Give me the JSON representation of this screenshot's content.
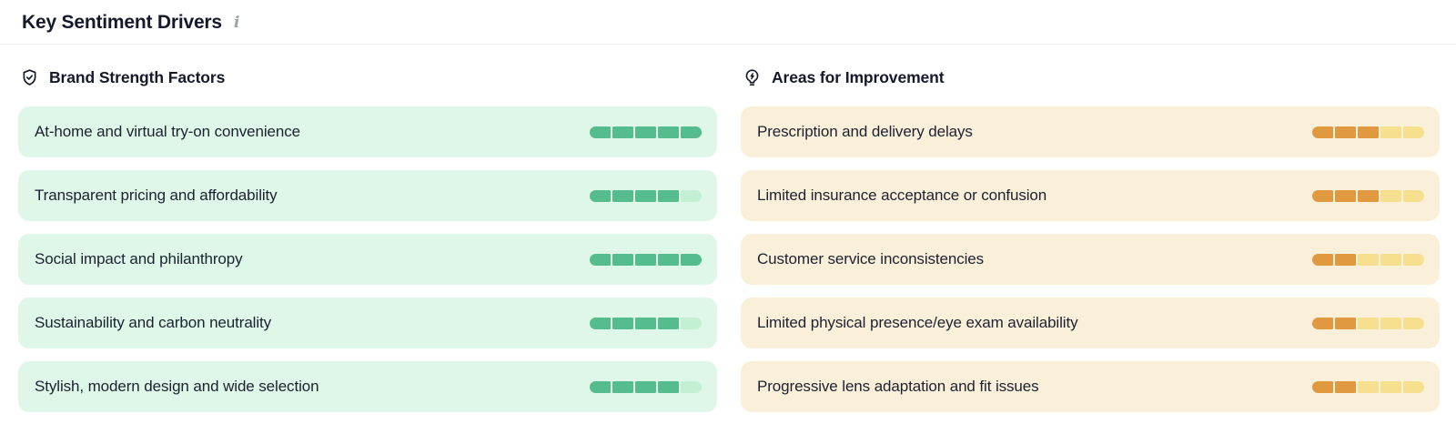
{
  "header": {
    "title": "Key Sentiment Drivers"
  },
  "columns": [
    {
      "id": "brand-strength-factors",
      "title": "Brand Strength Factors",
      "icon": "shield-check-icon",
      "theme": {
        "row_bg": "#def7e8",
        "filled": "#55bd8d",
        "empty": "#c3efd3"
      },
      "items": [
        {
          "label": "At-home and virtual try-on convenience",
          "score": 5,
          "max": 5
        },
        {
          "label": "Transparent pricing and affordability",
          "score": 4,
          "max": 5
        },
        {
          "label": "Social impact and philanthropy",
          "score": 5,
          "max": 5
        },
        {
          "label": "Sustainability and carbon neutrality",
          "score": 4,
          "max": 5
        },
        {
          "label": "Stylish, modern design and wide selection",
          "score": 4,
          "max": 5
        }
      ]
    },
    {
      "id": "areas-for-improvement",
      "title": "Areas for Improvement",
      "icon": "lightbulb-bolt-icon",
      "theme": {
        "row_bg": "#faf0da",
        "filled": "#e0993e",
        "empty": "#f6e090"
      },
      "items": [
        {
          "label": "Prescription and delivery delays",
          "score": 3,
          "max": 5
        },
        {
          "label": "Limited insurance acceptance or confusion",
          "score": 3,
          "max": 5
        },
        {
          "label": "Customer service inconsistencies",
          "score": 2,
          "max": 5
        },
        {
          "label": "Limited physical presence/eye exam availability",
          "score": 2,
          "max": 5
        },
        {
          "label": "Progressive lens adaptation and fit issues",
          "score": 2,
          "max": 5
        }
      ]
    }
  ]
}
